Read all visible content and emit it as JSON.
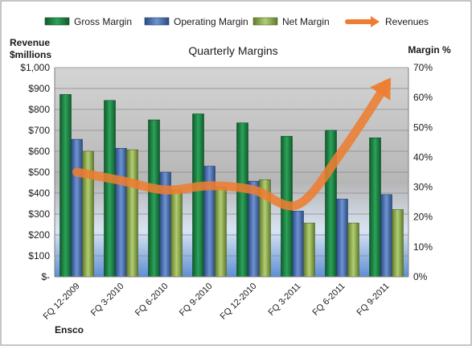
{
  "chart_data": {
    "type": "bar",
    "title": "Quarterly Margins",
    "categories": [
      "FQ 12-2009",
      "FQ 3-2010",
      "FQ 6-2010",
      "FQ 9-2010",
      "FQ 12-2010",
      "FQ 3-2011",
      "FQ 6-2011",
      "FQ 9-2011"
    ],
    "series": [
      {
        "name": "Gross Margin",
        "axis": "right",
        "color": "#1f8a44",
        "values": [
          61,
          59,
          52.5,
          54.5,
          51.5,
          47,
          49,
          46.5
        ]
      },
      {
        "name": "Operating Margin",
        "axis": "right",
        "color": "#4a72b8",
        "values": [
          46,
          43,
          35,
          37,
          32,
          22,
          26,
          27.5
        ]
      },
      {
        "name": "Net Margin",
        "axis": "right",
        "color": "#9bbb59",
        "values": [
          42,
          42.5,
          29,
          30,
          32.5,
          18,
          18,
          22.5
        ]
      },
      {
        "name": "Revenues",
        "type": "line",
        "axis": "left",
        "color": "#ed7d31",
        "values": [
          500,
          460,
          415,
          435,
          415,
          345,
          600,
          920
        ]
      }
    ],
    "y_left": {
      "label_line1": "Revenue",
      "label_line2": "$millions",
      "range": [
        0,
        1000
      ],
      "ticks": [
        "$-",
        "$100",
        "$200",
        "$300",
        "$400",
        "$500",
        "$600",
        "$700",
        "$800",
        "$900",
        "$1,000"
      ]
    },
    "y_right": {
      "label": "Margin %",
      "range": [
        0,
        70
      ],
      "ticks": [
        "0%",
        "10%",
        "20%",
        "30%",
        "40%",
        "50%",
        "60%",
        "70%"
      ]
    },
    "legend_position": "top",
    "grid": true,
    "footer": "Ensco"
  }
}
